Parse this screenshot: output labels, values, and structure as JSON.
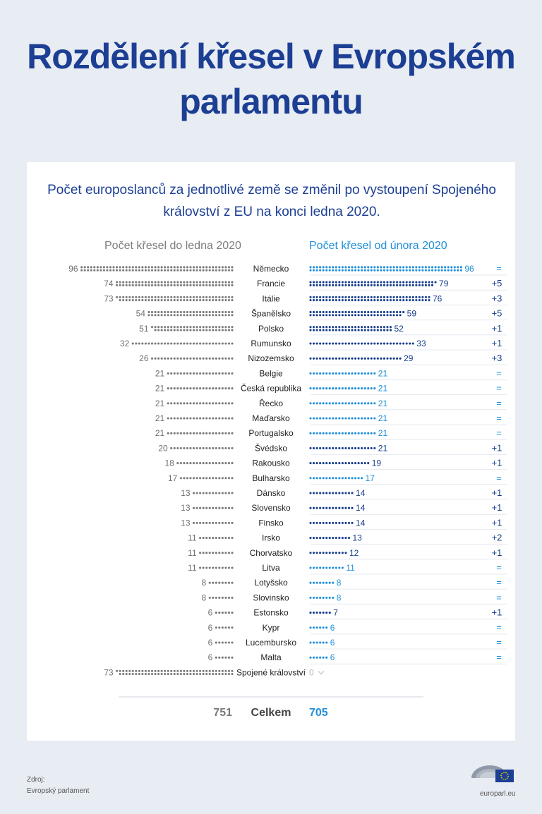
{
  "title": "Rozdělení křesel v Evropském parlamentu",
  "subtitle": "Počet europoslanců za jednotlivé země se změnil po vystoupení Spojeného království z EU na konci ledna 2020.",
  "colors": {
    "grey": "#7a7a7a",
    "darkblue": "#163d8c",
    "lightblue": "#1f8fdb",
    "title": "#1c3f94"
  },
  "chart_data": {
    "type": "dot-bar",
    "left_header": "Počet křesel do ledna 2020",
    "right_header": "Počet křesel od února 2020",
    "rows": [
      {
        "country": "Německo",
        "before": 96,
        "after": 96,
        "change": "="
      },
      {
        "country": "Francie",
        "before": 74,
        "after": 79,
        "change": "+5"
      },
      {
        "country": "Itálie",
        "before": 73,
        "after": 76,
        "change": "+3"
      },
      {
        "country": "Španělsko",
        "before": 54,
        "after": 59,
        "change": "+5"
      },
      {
        "country": "Polsko",
        "before": 51,
        "after": 52,
        "change": "+1"
      },
      {
        "country": "Rumunsko",
        "before": 32,
        "after": 33,
        "change": "+1"
      },
      {
        "country": "Nizozemsko",
        "before": 26,
        "after": 29,
        "change": "+3"
      },
      {
        "country": "Belgie",
        "before": 21,
        "after": 21,
        "change": "="
      },
      {
        "country": "Česká republika",
        "before": 21,
        "after": 21,
        "change": "="
      },
      {
        "country": "Řecko",
        "before": 21,
        "after": 21,
        "change": "="
      },
      {
        "country": "Maďarsko",
        "before": 21,
        "after": 21,
        "change": "="
      },
      {
        "country": "Portugalsko",
        "before": 21,
        "after": 21,
        "change": "="
      },
      {
        "country": "Švédsko",
        "before": 20,
        "after": 21,
        "change": "+1"
      },
      {
        "country": "Rakousko",
        "before": 18,
        "after": 19,
        "change": "+1"
      },
      {
        "country": "Bulharsko",
        "before": 17,
        "after": 17,
        "change": "="
      },
      {
        "country": "Dánsko",
        "before": 13,
        "after": 14,
        "change": "+1"
      },
      {
        "country": "Slovensko",
        "before": 13,
        "after": 14,
        "change": "+1"
      },
      {
        "country": "Finsko",
        "before": 13,
        "after": 14,
        "change": "+1"
      },
      {
        "country": "Irsko",
        "before": 11,
        "after": 13,
        "change": "+2"
      },
      {
        "country": "Chorvatsko",
        "before": 11,
        "after": 12,
        "change": "+1"
      },
      {
        "country": "Litva",
        "before": 11,
        "after": 11,
        "change": "="
      },
      {
        "country": "Lotyšsko",
        "before": 8,
        "after": 8,
        "change": "="
      },
      {
        "country": "Slovinsko",
        "before": 8,
        "after": 8,
        "change": "="
      },
      {
        "country": "Estonsko",
        "before": 6,
        "after": 7,
        "change": "+1"
      },
      {
        "country": "Kypr",
        "before": 6,
        "after": 6,
        "change": "="
      },
      {
        "country": "Lucembursko",
        "before": 6,
        "after": 6,
        "change": "="
      },
      {
        "country": "Malta",
        "before": 6,
        "after": 6,
        "change": "="
      },
      {
        "country": "Spojené království",
        "before": 73,
        "after": 0,
        "change": "down"
      }
    ],
    "total_label": "Celkem",
    "total_before": 751,
    "total_after": 705
  },
  "source": {
    "label": "Zdroj:",
    "name": "Evropský parlament"
  },
  "brand": "europarl.eu"
}
